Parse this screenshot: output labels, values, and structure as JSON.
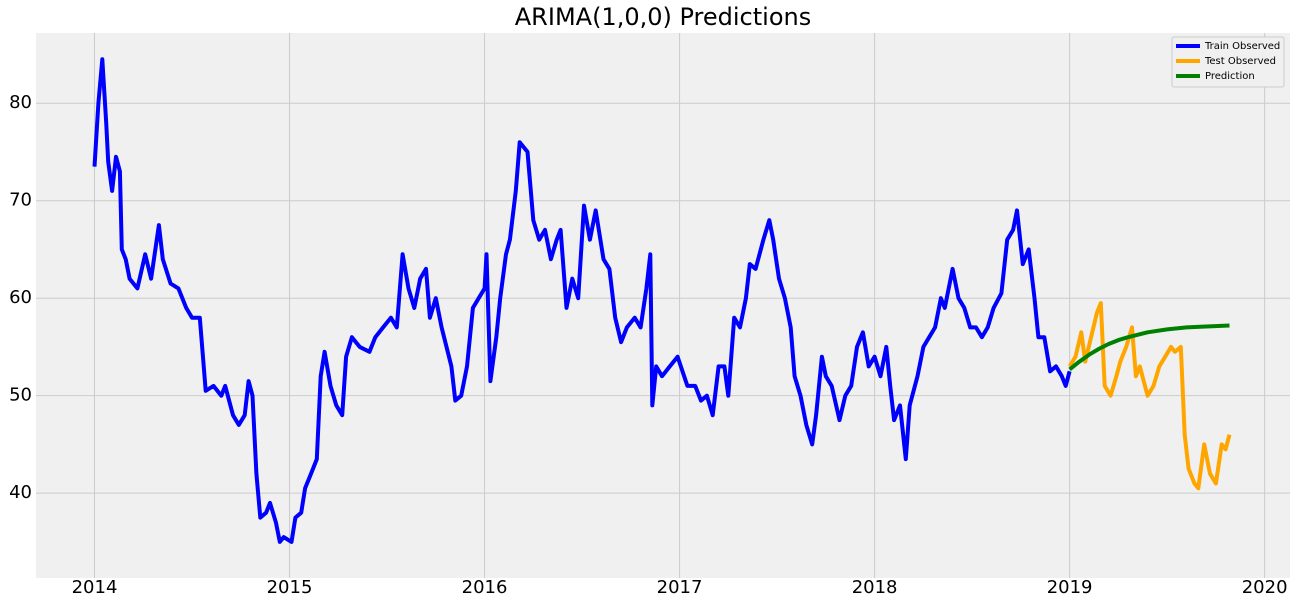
{
  "chart_data": {
    "type": "line",
    "title": "ARIMA(1,0,0) Predictions",
    "xlim": [
      2013.7,
      2020.13
    ],
    "ylim": [
      31.3,
      87.2
    ],
    "xticks": [
      2014,
      2015,
      2016,
      2017,
      2018,
      2019,
      2020
    ],
    "yticks": [
      40,
      50,
      60,
      70,
      80
    ],
    "grid": true,
    "legend": "upper right",
    "series": [
      {
        "name": "Train Observed",
        "color": "#0000ff",
        "x": [
          2014.0,
          2014.02,
          2014.04,
          2014.06,
          2014.07,
          2014.09,
          2014.11,
          2014.13,
          2014.14,
          2014.16,
          2014.18,
          2014.22,
          2014.26,
          2014.29,
          2014.33,
          2014.35,
          2014.39,
          2014.43,
          2014.47,
          2014.5,
          2014.54,
          2014.57,
          2014.61,
          2014.65,
          2014.67,
          2014.71,
          2014.74,
          2014.77,
          2014.79,
          2014.81,
          2014.83,
          2014.85,
          2014.88,
          2014.9,
          2014.93,
          2014.95,
          2014.97,
          2015.01,
          2015.03,
          2015.06,
          2015.08,
          2015.11,
          2015.14,
          2015.16,
          2015.18,
          2015.21,
          2015.24,
          2015.27,
          2015.29,
          2015.32,
          2015.36,
          2015.41,
          2015.44,
          2015.48,
          2015.52,
          2015.55,
          2015.58,
          2015.61,
          2015.64,
          2015.67,
          2015.7,
          2015.72,
          2015.75,
          2015.78,
          2015.83,
          2015.85,
          2015.88,
          2015.91,
          2015.94,
          2015.97,
          2016.0,
          2016.01,
          2016.03,
          2016.06,
          2016.08,
          2016.11,
          2016.13,
          2016.16,
          2016.18,
          2016.22,
          2016.25,
          2016.28,
          2016.31,
          2016.34,
          2016.37,
          2016.39,
          2016.42,
          2016.45,
          2016.48,
          2016.51,
          2016.54,
          2016.57,
          2016.61,
          2016.64,
          2016.67,
          2016.7,
          2016.73,
          2016.77,
          2016.8,
          2016.83,
          2016.85,
          2016.86,
          2016.88,
          2016.91,
          2016.95,
          2016.99,
          2017.04,
          2017.08,
          2017.11,
          2017.14,
          2017.17,
          2017.2,
          2017.23,
          2017.25,
          2017.28,
          2017.31,
          2017.34,
          2017.36,
          2017.39,
          2017.43,
          2017.46,
          2017.48,
          2017.51,
          2017.54,
          2017.57,
          2017.59,
          2017.62,
          2017.65,
          2017.68,
          2017.7,
          2017.73,
          2017.75,
          2017.78,
          2017.82,
          2017.85,
          2017.88,
          2017.91,
          2017.94,
          2017.97,
          2018.0,
          2018.03,
          2018.06,
          2018.08,
          2018.1,
          2018.13,
          2018.16,
          2018.18,
          2018.22,
          2018.25,
          2018.28,
          2018.31,
          2018.34,
          2018.36,
          2018.4,
          2018.43,
          2018.46,
          2018.49,
          2018.52,
          2018.55,
          2018.58,
          2018.61,
          2018.65,
          2018.68,
          2018.71,
          2018.73,
          2018.76,
          2018.79,
          2018.82,
          2018.84,
          2018.87,
          2018.9,
          2018.93,
          2018.96,
          2018.98,
          2019.0
        ],
        "values": [
          73.5,
          80,
          84.5,
          78,
          74,
          71,
          74.5,
          73,
          65,
          64,
          62,
          61,
          64.5,
          62,
          67.5,
          64,
          61.5,
          61,
          59,
          58,
          58,
          50.5,
          51,
          50,
          51,
          48,
          47,
          48,
          51.5,
          50,
          42,
          37.5,
          38,
          39,
          37,
          35,
          35.5,
          35,
          37.5,
          38,
          40.5,
          42,
          43.5,
          52,
          54.5,
          51,
          49,
          48,
          54,
          56,
          55,
          54.5,
          56,
          57,
          58,
          57,
          64.5,
          61,
          59,
          62,
          63,
          58,
          60,
          57,
          53,
          49.5,
          50,
          53,
          59,
          60,
          61,
          64.5,
          51.5,
          56,
          60,
          64.5,
          66,
          71,
          76,
          75,
          68,
          66,
          67,
          64,
          66,
          67,
          59,
          62,
          60,
          69.5,
          66,
          69,
          64,
          63,
          58,
          55.5,
          57,
          58,
          57,
          61,
          64.5,
          49,
          53,
          52,
          53,
          54,
          51,
          51,
          49.5,
          50,
          48,
          53,
          53,
          50,
          58,
          57,
          60,
          63.5,
          63,
          66,
          68,
          66,
          62,
          60,
          57,
          52,
          50,
          47,
          45,
          48,
          54,
          52,
          51,
          47.5,
          50,
          51,
          55,
          56.5,
          53,
          54,
          52,
          55,
          51,
          47.5,
          49,
          43.5,
          49,
          52,
          55,
          56,
          57,
          60,
          59,
          63,
          60,
          59,
          57,
          57,
          56,
          57,
          59,
          60.5,
          66,
          67,
          69,
          63.5,
          65,
          60,
          56,
          56,
          52.5,
          53,
          52,
          51,
          52.5
        ]
      },
      {
        "name": "Test Observed",
        "color": "#ffa500",
        "x": [
          2019.0,
          2019.03,
          2019.06,
          2019.08,
          2019.11,
          2019.14,
          2019.16,
          2019.18,
          2019.21,
          2019.24,
          2019.26,
          2019.29,
          2019.32,
          2019.34,
          2019.36,
          2019.4,
          2019.43,
          2019.46,
          2019.49,
          2019.52,
          2019.54,
          2019.57,
          2019.59,
          2019.61,
          2019.64,
          2019.66,
          2019.69,
          2019.72,
          2019.75,
          2019.78,
          2019.8,
          2019.82
        ],
        "values": [
          53,
          54,
          56.5,
          53.5,
          56,
          58.5,
          59.5,
          51,
          50,
          52,
          53.5,
          55,
          57,
          52,
          53,
          50,
          51,
          53,
          54,
          55,
          54.5,
          55,
          46,
          42.5,
          41,
          40.5,
          45,
          42,
          41,
          45,
          44.5,
          46
        ]
      },
      {
        "name": "Prediction",
        "color": "#008000",
        "x": [
          2019.0,
          2019.05,
          2019.1,
          2019.15,
          2019.2,
          2019.25,
          2019.3,
          2019.4,
          2019.5,
          2019.6,
          2019.7,
          2019.82
        ],
        "values": [
          52.7,
          53.5,
          54.2,
          54.8,
          55.3,
          55.7,
          56.0,
          56.5,
          56.8,
          57.0,
          57.1,
          57.2
        ]
      }
    ]
  }
}
